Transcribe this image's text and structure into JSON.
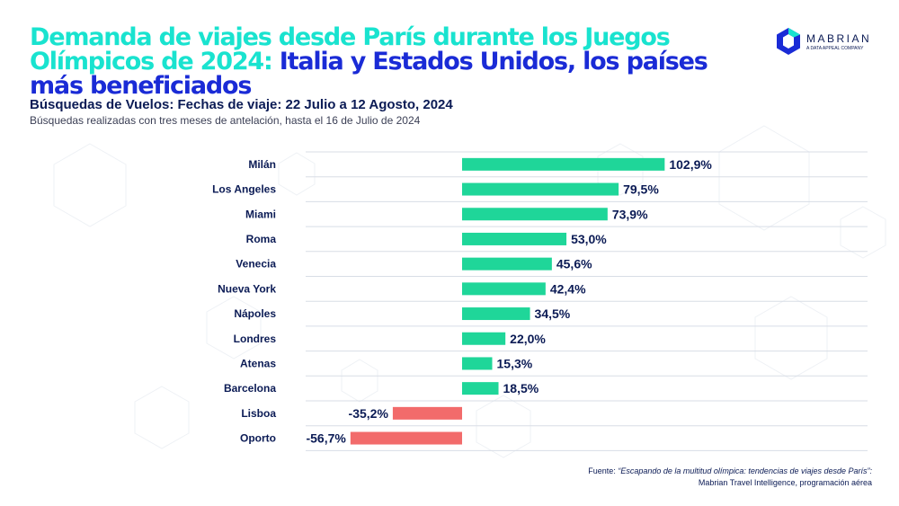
{
  "header": {
    "title_highlight": "Demanda de viajes desde París durante los Juegos Olímpicos de 2024:",
    "title_main": "Italia y Estados Unidos, los países más beneficiados",
    "subtitle": "Búsquedas de Vuelos: Fechas de viaje: 22 Julio a 12 Agosto, 2024",
    "note": "Búsquedas realizadas con tres meses de antelación, hasta el 16 de Julio de 2024"
  },
  "logo": {
    "name": "MABRIAN",
    "tagline": "A DATA APPEAL COMPANY"
  },
  "colors": {
    "positive": "#1fd699",
    "negative": "#f26b6b",
    "accent": "#19e3cf",
    "brand": "#1a2bd6",
    "text": "#0b1b55"
  },
  "chart_data": {
    "type": "bar",
    "orientation": "horizontal",
    "categories": [
      "Milán",
      "Los Angeles",
      "Miami",
      "Roma",
      "Venecia",
      "Nueva York",
      "Nápoles",
      "Londres",
      "Atenas",
      "Barcelona",
      "Lisboa",
      "Oporto"
    ],
    "values": [
      102.9,
      79.5,
      73.9,
      53.0,
      45.6,
      42.4,
      34.5,
      22.0,
      15.3,
      18.5,
      -35.2,
      -56.7
    ],
    "labels": [
      "102,9%",
      "79,5%",
      "73,9%",
      "53,0%",
      "45,6%",
      "42,4%",
      "34,5%",
      "22,0%",
      "15,3%",
      "18,5%",
      "-35,2%",
      "-56,7%"
    ],
    "unit": "%",
    "xlim": [
      -56.7,
      102.9
    ],
    "grid": true,
    "legend": "none"
  },
  "source": {
    "prefix": "Fuente:",
    "quote": "“Escapando de la multitud olímpica: tendencias de viajes desde París”:",
    "rest": "Mabrian Travel Intelligence,  programación aérea"
  }
}
